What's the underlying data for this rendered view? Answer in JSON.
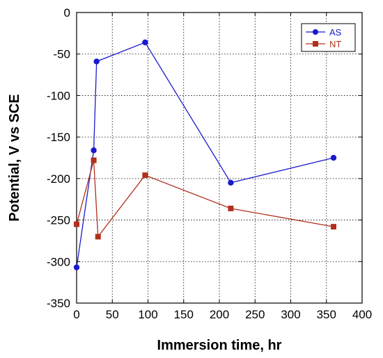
{
  "chart_data": {
    "type": "line",
    "title": "",
    "xlabel": "Immersion time, hr",
    "ylabel": "Potential, V vs SCE",
    "xlim": [
      0,
      400
    ],
    "ylim": [
      -350,
      0
    ],
    "xticks": [
      0,
      50,
      100,
      150,
      200,
      250,
      300,
      350,
      400
    ],
    "yticks": [
      0,
      -50,
      -100,
      -150,
      -200,
      -250,
      -300,
      -350
    ],
    "grid": true,
    "legend_position": "top-right",
    "series": [
      {
        "name": "AS",
        "color": "#1a1acc",
        "marker": "circle",
        "x": [
          0,
          24,
          28,
          96,
          216,
          360
        ],
        "y": [
          -307,
          -166,
          -59,
          -36,
          -205,
          -175
        ]
      },
      {
        "name": "NT",
        "color": "#b0301c",
        "marker": "square",
        "x": [
          0,
          24,
          30,
          96,
          216,
          360
        ],
        "y": [
          -255,
          -178,
          -270,
          -196,
          -236,
          -258
        ]
      }
    ]
  }
}
